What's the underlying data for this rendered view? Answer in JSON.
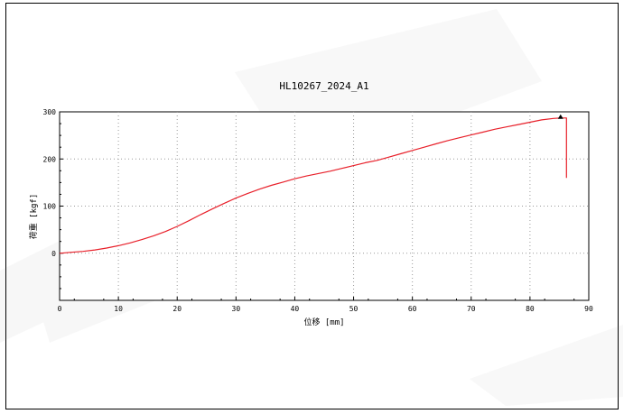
{
  "colors": {
    "line": "#e8202a",
    "grid": "#9a9a9a",
    "axis": "#000000",
    "marker": "#000000"
  },
  "chart_data": {
    "type": "line",
    "title": "HL10267_2024_A1",
    "xlabel": "位移 [mm]",
    "ylabel": "荷重 [kgf]",
    "xlim": [
      0,
      90
    ],
    "ylim": [
      -100,
      300
    ],
    "xticks": [
      0,
      10,
      20,
      30,
      40,
      50,
      60,
      70,
      80,
      90
    ],
    "yticks": [
      0,
      100,
      200,
      300
    ],
    "grid": true,
    "series": [
      {
        "x": [
          0,
          2,
          4,
          6,
          8,
          10,
          12,
          14,
          16,
          18,
          20,
          22,
          24,
          26,
          28,
          30,
          32,
          34,
          36,
          38,
          40,
          42,
          44,
          46,
          48,
          50,
          52,
          54,
          56,
          58,
          60,
          62,
          64,
          66,
          68,
          70,
          72,
          74,
          76,
          78,
          80,
          82,
          84,
          85.2,
          86.2,
          86.2
        ],
        "y": [
          0,
          2,
          4,
          7,
          11,
          16,
          22,
          29,
          37,
          46,
          57,
          69,
          82,
          94,
          106,
          117,
          127,
          136,
          144,
          151,
          158,
          164,
          169,
          174,
          180,
          186,
          192,
          197,
          204,
          211,
          218,
          225,
          232,
          239,
          245,
          251,
          257,
          263,
          268,
          273,
          278,
          283,
          286,
          287,
          287,
          160
        ]
      }
    ],
    "peak_marker": {
      "x": 85.2,
      "y": 287
    }
  }
}
